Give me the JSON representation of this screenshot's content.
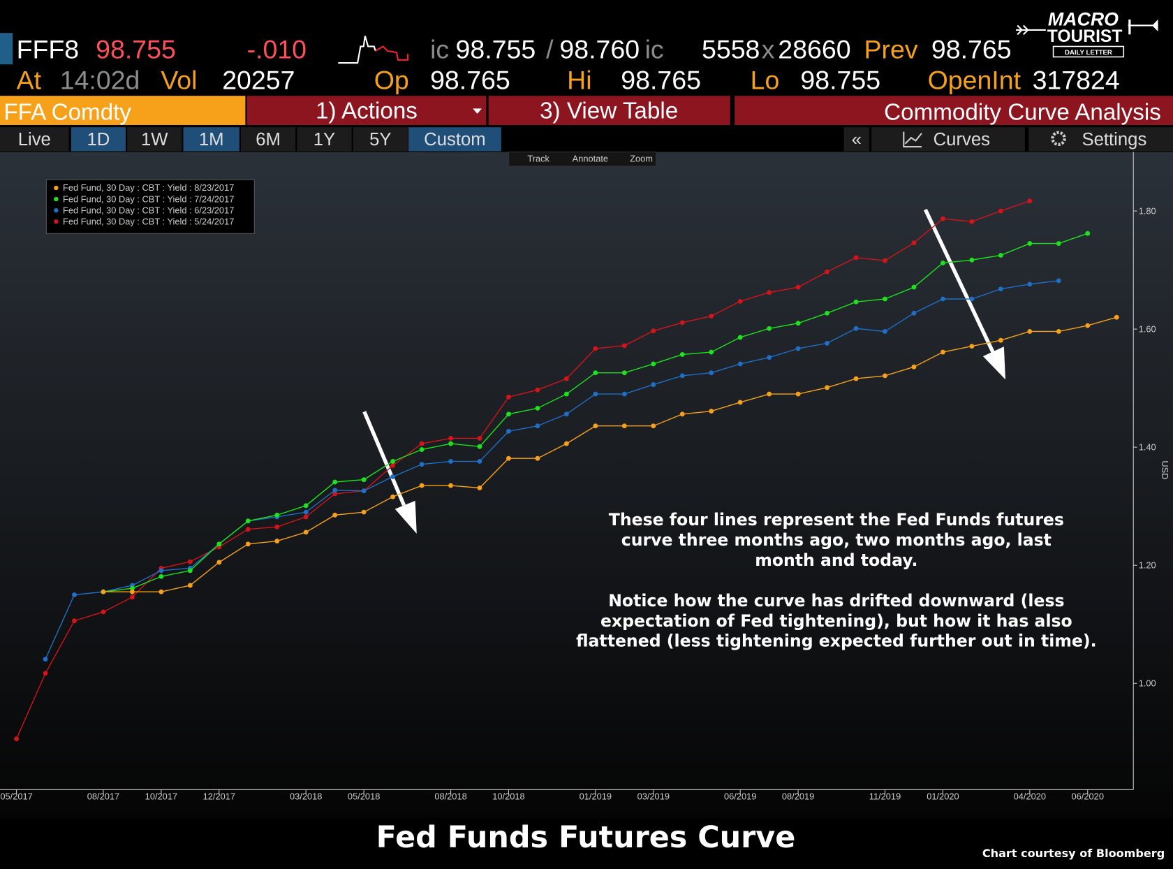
{
  "quote": {
    "ticker": "FFF8",
    "last": "98.755",
    "change": "-.010",
    "bid_prefix": "ic",
    "bid": "98.755",
    "bid_ask_sep": "/",
    "ask": "98.760",
    "ask_suffix": "ic",
    "bid_size": "5558",
    "size_sep": "x",
    "ask_size": "28660",
    "prev_label": "Prev",
    "prev": "98.765",
    "at_label": "At",
    "time": "14:02d",
    "vol_label": "Vol",
    "vol": "20257",
    "open_label": "Op",
    "open": "98.765",
    "high_label": "Hi",
    "high": "98.765",
    "low_label": "Lo",
    "low": "98.755",
    "oi_label": "OpenInt",
    "oi": "317824"
  },
  "logo": {
    "line1": "MACRO",
    "line2": "TOURIST",
    "tagline": "DAILY LETTER"
  },
  "toolbar": {
    "security": "FFA Comdty",
    "actions": "1) Actions",
    "view_table": "3) View Table",
    "function": "Commodity Curve Analysis"
  },
  "tabs": {
    "ranges": [
      {
        "label": "Live",
        "active": false
      },
      {
        "label": "1D",
        "active": true
      },
      {
        "label": "1W",
        "active": false
      },
      {
        "label": "1M",
        "active": true
      },
      {
        "label": "6M",
        "active": false
      },
      {
        "label": "1Y",
        "active": false
      },
      {
        "label": "5Y",
        "active": false
      },
      {
        "label": "Custom",
        "active": true
      }
    ],
    "right": [
      "«",
      "Curves",
      "Settings"
    ]
  },
  "chart_tools": [
    "Track",
    "Annotate",
    "Zoom"
  ],
  "chart_data": {
    "type": "line",
    "title": "Fed Funds Futures Curve",
    "credit": "Chart courtesy of Bloomberg",
    "y_label": "USD",
    "annotation": [
      [
        "These four lines represent the Fed Funds futures",
        "curve three months ago, two months ago, last",
        "month and today."
      ],
      [
        "Notice how the curve has drifted downward (less",
        "expectation of Fed tightening), but how it has also",
        "flattened (less tightening expected further out in time)."
      ]
    ],
    "x": [
      "05/2017",
      "06/2017",
      "07/2017",
      "08/2017",
      "09/2017",
      "10/2017",
      "11/2017",
      "12/2017",
      "01/2018",
      "02/2018",
      "03/2018",
      "04/2018",
      "05/2018",
      "06/2018",
      "07/2018",
      "08/2018",
      "09/2018",
      "10/2018",
      "11/2018",
      "12/2018",
      "01/2019",
      "02/2019",
      "03/2019",
      "04/2019",
      "05/2019",
      "06/2019",
      "07/2019",
      "08/2019",
      "09/2019",
      "10/2019",
      "11/2019",
      "12/2019",
      "01/2020",
      "02/2020",
      "03/2020",
      "04/2020",
      "05/2020",
      "06/2020",
      "07/2020"
    ],
    "xticks": [
      "05/2017",
      "08/2017",
      "10/2017",
      "12/2017",
      "03/2018",
      "05/2018",
      "08/2018",
      "10/2018",
      "01/2019",
      "03/2019",
      "06/2019",
      "08/2019",
      "11/2019",
      "01/2020",
      "04/2020",
      "06/2020"
    ],
    "ylim": [
      0.82,
      1.9
    ],
    "yticks": [
      {
        "value": 1,
        "label": "1.00"
      },
      {
        "value": 1.2,
        "label": "1.20"
      },
      {
        "value": 1.4,
        "label": "1.40"
      },
      {
        "value": 1.6,
        "label": "1.60"
      },
      {
        "value": 1.8,
        "label": "1.80"
      }
    ],
    "legend": "top-left",
    "grid": false,
    "series": [
      {
        "name": "Fed Fund, 30 Day : CBT : Yield : 8/23/2017",
        "color": "#f7a11a",
        "values": [
          null,
          null,
          null,
          1.155,
          1.155,
          1.155,
          1.166,
          1.205,
          1.236,
          1.241,
          1.256,
          1.285,
          1.29,
          1.316,
          1.335,
          1.335,
          1.331,
          1.381,
          1.381,
          1.406,
          1.436,
          1.436,
          1.436,
          1.456,
          1.461,
          1.476,
          1.49,
          1.49,
          1.501,
          1.516,
          1.521,
          1.536,
          1.561,
          1.571,
          1.581,
          1.596,
          1.596,
          1.606,
          1.62
        ]
      },
      {
        "name": "Fed Fund, 30 Day : CBT : Yield : 7/24/2017",
        "color": "#1de21d",
        "values": [
          null,
          null,
          null,
          1.155,
          1.161,
          1.181,
          1.191,
          1.236,
          1.275,
          1.285,
          1.301,
          1.341,
          1.345,
          1.376,
          1.396,
          1.406,
          1.401,
          1.456,
          1.466,
          1.49,
          1.526,
          1.526,
          1.541,
          1.557,
          1.561,
          1.586,
          1.601,
          1.61,
          1.627,
          1.646,
          1.651,
          1.671,
          1.712,
          1.717,
          1.725,
          1.745,
          1.745,
          1.762,
          null
        ]
      },
      {
        "name": "Fed Fund, 30 Day : CBT : Yield : 6/23/2017",
        "color": "#1f6fc6",
        "values": [
          null,
          1.041,
          1.15,
          1.155,
          1.166,
          1.191,
          1.195,
          1.236,
          1.275,
          1.282,
          1.29,
          1.327,
          1.326,
          1.35,
          1.371,
          1.376,
          1.376,
          1.427,
          1.436,
          1.456,
          1.49,
          1.49,
          1.506,
          1.521,
          1.526,
          1.541,
          1.552,
          1.567,
          1.576,
          1.601,
          1.596,
          1.627,
          1.651,
          1.651,
          1.668,
          1.676,
          1.682,
          null,
          null
        ]
      },
      {
        "name": "Fed Fund, 30 Day : CBT : Yield : 5/24/2017",
        "color": "#d3141a",
        "values": [
          0.906,
          1.017,
          1.106,
          1.121,
          1.146,
          1.195,
          1.206,
          1.231,
          1.261,
          1.265,
          1.282,
          1.321,
          1.326,
          1.369,
          1.406,
          1.415,
          1.415,
          1.485,
          1.497,
          1.516,
          1.567,
          1.572,
          1.597,
          1.611,
          1.622,
          1.647,
          1.662,
          1.671,
          1.697,
          1.721,
          1.716,
          1.746,
          1.787,
          1.782,
          1.8,
          1.817,
          null,
          null,
          null
        ]
      }
    ]
  }
}
